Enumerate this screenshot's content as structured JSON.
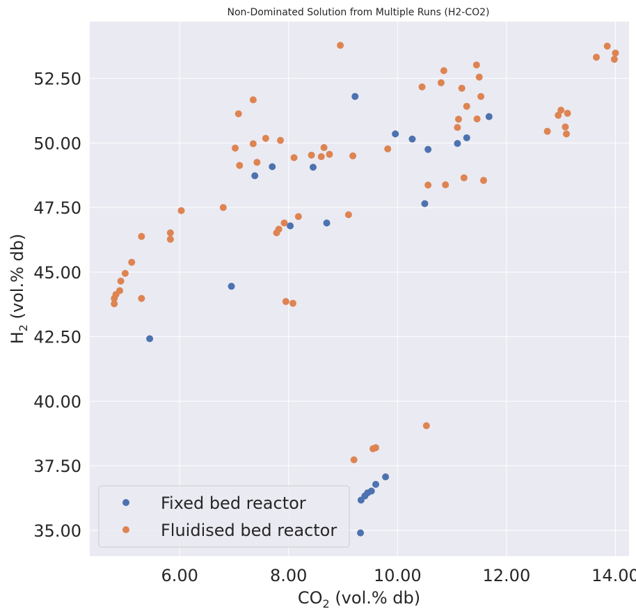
{
  "chart_data": {
    "type": "scatter",
    "title": "Non-Dominated Solution from Multiple Runs (H2-CO2)",
    "xlabel": {
      "base": "CO",
      "sub": "2",
      "rest": " (vol.% db)"
    },
    "ylabel": {
      "base": "H",
      "sub": "2",
      "rest": " (vol.% db)"
    },
    "xlim": [
      4.35,
      14.25
    ],
    "ylim": [
      34.0,
      54.7
    ],
    "x_ticks": [
      6,
      8,
      10,
      12,
      14
    ],
    "x_tick_labels": [
      "6.00",
      "8.00",
      "10.00",
      "12.00",
      "14.00"
    ],
    "y_ticks": [
      35,
      37.5,
      40,
      42.5,
      45,
      47.5,
      50,
      52.5
    ],
    "y_tick_labels": [
      "35.00",
      "37.50",
      "40.00",
      "42.50",
      "45.00",
      "47.50",
      "50.00",
      "52.50"
    ],
    "grid": true,
    "legend_position": "bottom-left",
    "colors": {
      "background": "#eaeaf2",
      "grid": "#ffffff",
      "fixed": "#4c72b0",
      "fluidised": "#dd8452"
    },
    "series": [
      {
        "name": "Fixed bed reactor",
        "color": "#4c72b0",
        "points": [
          [
            5.45,
            42.42
          ],
          [
            6.95,
            44.45
          ],
          [
            7.38,
            48.73
          ],
          [
            7.7,
            49.08
          ],
          [
            8.03,
            46.79
          ],
          [
            8.45,
            49.06
          ],
          [
            8.7,
            46.9
          ],
          [
            9.22,
            51.8
          ],
          [
            9.96,
            50.35
          ],
          [
            10.27,
            50.15
          ],
          [
            10.56,
            49.75
          ],
          [
            11.1,
            49.98
          ],
          [
            11.27,
            50.2
          ],
          [
            11.68,
            51.02
          ],
          [
            10.5,
            47.65
          ],
          [
            9.32,
            34.9
          ],
          [
            9.33,
            36.17
          ],
          [
            9.4,
            36.33
          ],
          [
            9.45,
            36.45
          ],
          [
            9.52,
            36.52
          ],
          [
            9.6,
            36.78
          ],
          [
            9.78,
            37.07
          ]
        ]
      },
      {
        "name": "Fluidised bed reactor",
        "color": "#dd8452",
        "points": [
          [
            4.8,
            43.77
          ],
          [
            4.8,
            43.98
          ],
          [
            4.83,
            44.13
          ],
          [
            4.9,
            44.28
          ],
          [
            4.92,
            44.65
          ],
          [
            5.0,
            44.95
          ],
          [
            5.12,
            45.38
          ],
          [
            5.3,
            43.98
          ],
          [
            5.3,
            46.38
          ],
          [
            5.83,
            46.27
          ],
          [
            5.83,
            46.52
          ],
          [
            6.03,
            47.38
          ],
          [
            6.8,
            47.5
          ],
          [
            7.02,
            49.8
          ],
          [
            7.08,
            51.13
          ],
          [
            7.1,
            49.13
          ],
          [
            7.35,
            49.97
          ],
          [
            7.35,
            51.67
          ],
          [
            7.42,
            49.25
          ],
          [
            7.58,
            50.18
          ],
          [
            7.78,
            46.52
          ],
          [
            7.82,
            46.66
          ],
          [
            7.85,
            50.1
          ],
          [
            7.92,
            46.9
          ],
          [
            7.95,
            43.86
          ],
          [
            8.08,
            43.79
          ],
          [
            8.1,
            49.43
          ],
          [
            8.18,
            47.15
          ],
          [
            8.42,
            49.53
          ],
          [
            8.6,
            49.47
          ],
          [
            8.65,
            49.82
          ],
          [
            8.75,
            49.56
          ],
          [
            8.95,
            53.78
          ],
          [
            9.1,
            47.22
          ],
          [
            9.18,
            49.5
          ],
          [
            9.2,
            37.73
          ],
          [
            9.82,
            49.77
          ],
          [
            9.55,
            38.16
          ],
          [
            9.6,
            38.2
          ],
          [
            10.45,
            52.17
          ],
          [
            10.53,
            39.05
          ],
          [
            10.56,
            48.37
          ],
          [
            10.8,
            52.33
          ],
          [
            10.85,
            52.8
          ],
          [
            10.88,
            48.38
          ],
          [
            11.1,
            50.6
          ],
          [
            11.12,
            50.92
          ],
          [
            11.18,
            52.12
          ],
          [
            11.22,
            48.65
          ],
          [
            11.27,
            51.42
          ],
          [
            11.45,
            53.02
          ],
          [
            11.46,
            50.93
          ],
          [
            11.5,
            52.55
          ],
          [
            11.53,
            51.8
          ],
          [
            11.58,
            48.55
          ],
          [
            12.75,
            50.45
          ],
          [
            12.95,
            51.07
          ],
          [
            13.0,
            51.27
          ],
          [
            13.08,
            50.62
          ],
          [
            13.1,
            50.35
          ],
          [
            13.12,
            51.15
          ],
          [
            13.65,
            53.32
          ],
          [
            13.85,
            53.75
          ],
          [
            13.98,
            53.24
          ],
          [
            14.0,
            53.48
          ]
        ]
      }
    ]
  }
}
